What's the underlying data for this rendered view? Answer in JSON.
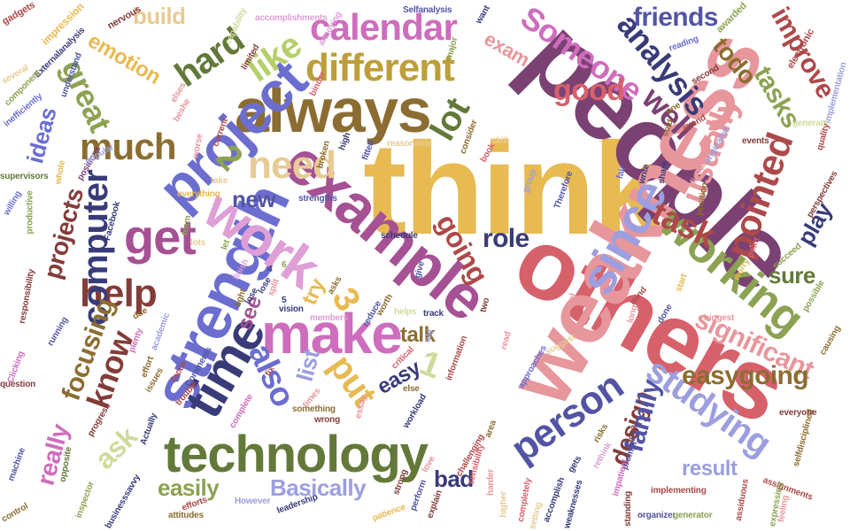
{
  "words": [
    {
      "text": "think",
      "color": "#e7ba52"
    },
    {
      "text": "people",
      "color": "#7b4173"
    },
    {
      "text": "others",
      "color": "#d6616b"
    },
    {
      "text": "weakness",
      "color": "#e7969c"
    },
    {
      "text": "example",
      "color": "#a55194"
    },
    {
      "text": "strength",
      "color": "#6b6ecf"
    },
    {
      "text": "always",
      "color": "#8c6d31"
    },
    {
      "text": "technology",
      "color": "#637939"
    },
    {
      "text": "make",
      "color": "#ce6dbd"
    },
    {
      "text": "time",
      "color": "#393b79"
    },
    {
      "text": "project",
      "color": "#6b6ecf"
    },
    {
      "text": "work",
      "color": "#de9ed6"
    },
    {
      "text": "since",
      "color": "#9c9ede"
    },
    {
      "text": "get",
      "color": "#a55194"
    },
    {
      "text": "working",
      "color": "#8ca252"
    },
    {
      "text": "different",
      "color": "#bd9e39"
    },
    {
      "text": "help",
      "color": "#843c39"
    },
    {
      "text": "need",
      "color": "#e7cb94"
    },
    {
      "text": "person",
      "color": "#5254a3"
    },
    {
      "text": "studying",
      "color": "#9c9ede"
    },
    {
      "text": "analysis",
      "color": "#393b79"
    },
    {
      "text": "calendar",
      "color": "#ce6dbd"
    },
    {
      "text": "Someone",
      "color": "#ce6dbd"
    },
    {
      "text": "much",
      "color": "#8c6d31"
    },
    {
      "text": "lot",
      "color": "#637939"
    },
    {
      "text": "computer",
      "color": "#393b79"
    },
    {
      "text": "hard",
      "color": "#637939"
    },
    {
      "text": "like",
      "color": "#b5cf6b"
    },
    {
      "text": "also",
      "color": "#6b6ecf"
    },
    {
      "text": "put",
      "color": "#e7ba52"
    },
    {
      "text": "pointed",
      "color": "#ad494a"
    },
    {
      "text": "usually",
      "color": "#e7969c"
    },
    {
      "text": "task",
      "color": "#ad494a"
    },
    {
      "text": "good",
      "color": "#d6616b"
    },
    {
      "text": "well",
      "color": "#7b4173"
    },
    {
      "text": "great",
      "color": "#8ca252"
    },
    {
      "text": "improve",
      "color": "#ad494a"
    },
    {
      "text": "tasks",
      "color": "#8ca252"
    },
    {
      "text": "friends",
      "color": "#5254a3"
    },
    {
      "text": "significant",
      "color": "#e7969c"
    },
    {
      "text": "easygoing",
      "color": "#8c6d31"
    },
    {
      "text": "know",
      "color": "#843c39"
    },
    {
      "text": "focusing",
      "color": "#8c6d31"
    },
    {
      "text": "going",
      "color": "#ad494a"
    },
    {
      "text": "role",
      "color": "#393b79"
    },
    {
      "text": "design",
      "color": "#843c39"
    },
    {
      "text": "family",
      "color": "#5254a3"
    },
    {
      "text": "result",
      "color": "#9c9ede"
    },
    {
      "text": "easily",
      "color": "#8ca252"
    },
    {
      "text": "Basically",
      "color": "#9c9ede"
    },
    {
      "text": "bad",
      "color": "#393b79"
    },
    {
      "text": "ask",
      "color": "#cedb9c"
    },
    {
      "text": "really",
      "color": "#ce6dbd"
    },
    {
      "text": "projects",
      "color": "#843c39"
    },
    {
      "text": "ideas",
      "color": "#6b6ecf"
    },
    {
      "text": "emotion",
      "color": "#e7ba52"
    },
    {
      "text": "build",
      "color": "#e7cb94"
    },
    {
      "text": "todo",
      "color": "#8c6d31"
    },
    {
      "text": "exam",
      "color": "#e7969c"
    },
    {
      "text": "easy",
      "color": "#393b79"
    },
    {
      "text": "talk",
      "color": "#8c6d31"
    },
    {
      "text": "list",
      "color": "#9c9ede"
    },
    {
      "text": "see",
      "color": "#a55194"
    },
    {
      "text": "try",
      "color": "#e7ba52"
    },
    {
      "text": "new",
      "color": "#5254a3"
    },
    {
      "text": "play",
      "color": "#393b79"
    },
    {
      "text": "sure",
      "color": "#637939"
    },
    {
      "text": "2",
      "color": "#8ca252"
    },
    {
      "text": "3",
      "color": "#e7ba52"
    },
    {
      "text": "1",
      "color": "#cedb9c"
    },
    {
      "text": "gadgets",
      "color": "#ad494a"
    },
    {
      "text": "impression",
      "color": "#e7ba52"
    },
    {
      "text": "Externalanalysis",
      "color": "#393b79"
    },
    {
      "text": "nervous",
      "color": "#843c39"
    },
    {
      "text": "capability",
      "color": "#cedb9c"
    },
    {
      "text": "accomplishments",
      "color": "#de9ed6"
    },
    {
      "text": "annoying",
      "color": "#de9ed6"
    },
    {
      "text": "Selfanalysis",
      "color": "#5254a3"
    },
    {
      "text": "want",
      "color": "#393b79"
    },
    {
      "text": "awarded",
      "color": "#8ca252"
    },
    {
      "text": "electronic",
      "color": "#ad494a"
    },
    {
      "text": "component",
      "color": "#8ca252"
    },
    {
      "text": "inefficiently",
      "color": "#6b6ecf"
    },
    {
      "text": "understand",
      "color": "#5254a3"
    },
    {
      "text": "several",
      "color": "#e7cb94"
    },
    {
      "text": "willing",
      "color": "#6b6ecf"
    },
    {
      "text": "supervisors",
      "color": "#637939"
    },
    {
      "text": "productive",
      "color": "#8ca252"
    },
    {
      "text": "positions",
      "color": "#7b4173"
    },
    {
      "text": "popular",
      "color": "#9c9ede"
    },
    {
      "text": "whole",
      "color": "#e7ba52"
    },
    {
      "text": "Facebook",
      "color": "#393b79"
    },
    {
      "text": "elses",
      "color": "#e7969c"
    },
    {
      "text": "beshe",
      "color": "#e7969c"
    },
    {
      "text": "current",
      "color": "#ad494a"
    },
    {
      "text": "worse",
      "color": "#e7969c"
    },
    {
      "text": "limited",
      "color": "#843c39"
    },
    {
      "text": "binder",
      "color": "#d6616b"
    },
    {
      "text": "major",
      "color": "#8ca252"
    },
    {
      "text": "reading",
      "color": "#6b6ecf"
    },
    {
      "text": "second",
      "color": "#843c39"
    },
    {
      "text": "implementation",
      "color": "#9c9ede"
    },
    {
      "text": "generate",
      "color": "#cedb9c"
    },
    {
      "text": "quality",
      "color": "#ad494a"
    },
    {
      "text": "skill",
      "color": "#e7cb94"
    },
    {
      "text": "book",
      "color": "#d6616b"
    },
    {
      "text": "consider",
      "color": "#8c6d31"
    },
    {
      "text": "reasonable",
      "color": "#e7cb94"
    },
    {
      "text": "fitted",
      "color": "#5254a3"
    },
    {
      "text": "high",
      "color": "#393b79"
    },
    {
      "text": "broken",
      "color": "#8c6d31"
    },
    {
      "text": "strengths",
      "color": "#5254a3"
    },
    {
      "text": "everything",
      "color": "#e7ba52"
    },
    {
      "text": "take",
      "color": "#e7cb94"
    },
    {
      "text": "let",
      "color": "#8ca252"
    },
    {
      "text": "group",
      "color": "#9c9ede"
    },
    {
      "text": "Therefore",
      "color": "#5254a3"
    },
    {
      "text": "fair",
      "color": "#6b6ecf"
    },
    {
      "text": "write",
      "color": "#393b79"
    },
    {
      "text": "share",
      "color": "#393b79"
    },
    {
      "text": "sold",
      "color": "#8c6d31"
    },
    {
      "text": "events",
      "color": "#843c39"
    },
    {
      "text": "distracted",
      "color": "#e7969c"
    },
    {
      "text": "position",
      "color": "#8c6d31"
    },
    {
      "text": "originated",
      "color": "#9c9ede"
    },
    {
      "text": "perspectives",
      "color": "#843c39"
    },
    {
      "text": "succeed",
      "color": "#8ca252"
    },
    {
      "text": "worry",
      "color": "#e7ba52"
    },
    {
      "text": "point",
      "color": "#d6616b"
    },
    {
      "text": "start",
      "color": "#e7ba52"
    },
    {
      "text": "mind",
      "color": "#ad494a"
    },
    {
      "text": "done",
      "color": "#5254a3"
    },
    {
      "text": "possible",
      "color": "#8ca252"
    },
    {
      "text": "biggest",
      "color": "#e7969c"
    },
    {
      "text": "causing",
      "color": "#8c6d31"
    },
    {
      "text": "responsibility",
      "color": "#843c39"
    },
    {
      "text": "running",
      "color": "#5254a3"
    },
    {
      "text": "lose",
      "color": "#393b79"
    },
    {
      "text": "split",
      "color": "#e7969c"
    },
    {
      "text": "vision",
      "color": "#393b79"
    },
    {
      "text": "members",
      "color": "#de9ed6"
    },
    {
      "text": "reduce",
      "color": "#5254a3"
    },
    {
      "text": "worth",
      "color": "#8c6d31"
    },
    {
      "text": "helps",
      "color": "#cedb9c"
    },
    {
      "text": "two",
      "color": "#843c39"
    },
    {
      "text": "feel",
      "color": "#e7969c"
    },
    {
      "text": "critical",
      "color": "#d6616b"
    },
    {
      "text": "old",
      "color": "#9c9ede"
    },
    {
      "text": "information",
      "color": "#ad494a"
    },
    {
      "text": "suggest",
      "color": "#e7cb94"
    },
    {
      "text": "approaches",
      "color": "#6b6ecf"
    },
    {
      "text": "fix",
      "color": "#ad494a"
    },
    {
      "text": "times",
      "color": "#e7969c"
    },
    {
      "text": "wrong",
      "color": "#843c39"
    },
    {
      "text": "something",
      "color": "#8c6d31"
    },
    {
      "text": "complete",
      "color": "#ce6dbd"
    },
    {
      "text": "essay",
      "color": "#e7969c"
    },
    {
      "text": "workload",
      "color": "#393b79"
    },
    {
      "text": "trouble",
      "color": "#ad494a"
    },
    {
      "text": "issues",
      "color": "#8c6d31"
    },
    {
      "text": "businesssavvy",
      "color": "#393b79"
    },
    {
      "text": "control",
      "color": "#8c6d31"
    },
    {
      "text": "inspector",
      "color": "#8ca252"
    },
    {
      "text": "opposite",
      "color": "#637939"
    },
    {
      "text": "machine",
      "color": "#5254a3"
    },
    {
      "text": "question",
      "color": "#843c39"
    },
    {
      "text": "efforts",
      "color": "#ad494a"
    },
    {
      "text": "attitudes",
      "color": "#8c6d31"
    },
    {
      "text": "However",
      "color": "#9c9ede"
    },
    {
      "text": "leadership",
      "color": "#393b79"
    },
    {
      "text": "patience",
      "color": "#e7ba52"
    },
    {
      "text": "strong",
      "color": "#843c39"
    },
    {
      "text": "perform",
      "color": "#5254a3"
    },
    {
      "text": "explain",
      "color": "#843c39"
    },
    {
      "text": "challenging",
      "color": "#ad494a"
    },
    {
      "text": "harder",
      "color": "#e7969c"
    },
    {
      "text": "higher",
      "color": "#e7cb94"
    },
    {
      "text": "completely",
      "color": "#d6616b"
    },
    {
      "text": "accomplish",
      "color": "#393b79"
    },
    {
      "text": "weaknesses",
      "color": "#393b79"
    },
    {
      "text": "setting",
      "color": "#e7cb94"
    },
    {
      "text": "implementing",
      "color": "#ad494a"
    },
    {
      "text": "standing",
      "color": "#843c39"
    },
    {
      "text": "organizer",
      "color": "#5254a3"
    },
    {
      "text": "generator",
      "color": "#8ca252"
    },
    {
      "text": "assignments",
      "color": "#ad494a"
    },
    {
      "text": "expressing",
      "color": "#8ca252"
    },
    {
      "text": "feeling",
      "color": "#e7969c"
    },
    {
      "text": "assiduous",
      "color": "#ad494a"
    },
    {
      "text": "selfdisciplined",
      "color": "#8c6d31"
    },
    {
      "text": "everyone",
      "color": "#843c39"
    },
    {
      "text": "sensibility",
      "color": "#d6616b"
    },
    {
      "text": "love",
      "color": "#e7969c"
    },
    {
      "text": "gets",
      "color": "#393b79"
    },
    {
      "text": "area",
      "color": "#8c6d31"
    },
    {
      "text": "rethink",
      "color": "#de9ed6"
    },
    {
      "text": "idea",
      "color": "#843c39"
    },
    {
      "text": "risks",
      "color": "#8c6d31"
    },
    {
      "text": "prompt",
      "color": "#5254a3"
    },
    {
      "text": "long",
      "color": "#e7969c"
    },
    {
      "text": "track",
      "color": "#393b79"
    },
    {
      "text": "give",
      "color": "#5254a3"
    },
    {
      "text": "schedule",
      "color": "#393b79"
    },
    {
      "text": "asks",
      "color": "#8c6d31"
    },
    {
      "text": "read",
      "color": "#e7969c"
    },
    {
      "text": "else",
      "color": "#8c6d31"
    },
    {
      "text": "plenty",
      "color": "#ce6dbd"
    },
    {
      "text": "effort",
      "color": "#8c6d31"
    },
    {
      "text": "focus",
      "color": "#ad494a"
    },
    {
      "text": "finish",
      "color": "#de9ed6"
    },
    {
      "text": "team",
      "color": "#8ca252"
    },
    {
      "text": "lots",
      "color": "#e7cb94"
    },
    {
      "text": "tight",
      "color": "#8c6d31"
    },
    {
      "text": "academic",
      "color": "#9c9ede"
    },
    {
      "text": "Comments",
      "color": "#5254a3"
    },
    {
      "text": "Actually",
      "color": "#393b79"
    },
    {
      "text": "progress",
      "color": "#843c39"
    },
    {
      "text": "Clicking",
      "color": "#ce6dbd"
    },
    {
      "text": "lose",
      "color": "#393b79"
    },
    {
      "text": "one",
      "color": "#8c6d31"
    },
    {
      "text": "attend",
      "color": "#ad494a"
    },
    {
      "text": "due",
      "color": "#8c6d31"
    },
    {
      "text": "impatient",
      "color": "#ce6dbd"
    },
    {
      "text": "6",
      "color": "#8ca252"
    },
    {
      "text": "4",
      "color": "#393b79"
    },
    {
      "text": "5",
      "color": "#393b79"
    }
  ]
}
